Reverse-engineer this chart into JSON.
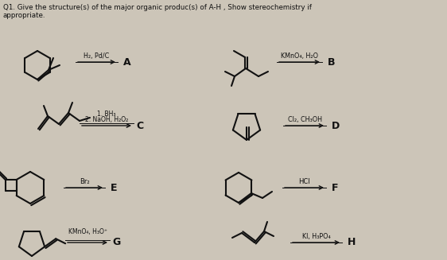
{
  "title_line1": "Q1. Give the structure(s) of the major organic produc(s) of A-H , Show stereochemistry if",
  "title_line2": "appropriate.",
  "bg_color": "#ccc5b8",
  "text_color": "#1a1a1a",
  "figsize": [
    5.62,
    3.27
  ],
  "dpi": 100,
  "reagents": {
    "A": "H₂, Pd/C",
    "B": "KMnO₄, H₂O",
    "C_1": "1. BH₃",
    "C_2": "2. NaOH, H₂O₂",
    "D": "Cl₂, CH₃OH",
    "E": "Br₂",
    "F": "HCl",
    "G": "KMnO₄, H₃O⁺",
    "H": "KI, H₃PO₄"
  }
}
